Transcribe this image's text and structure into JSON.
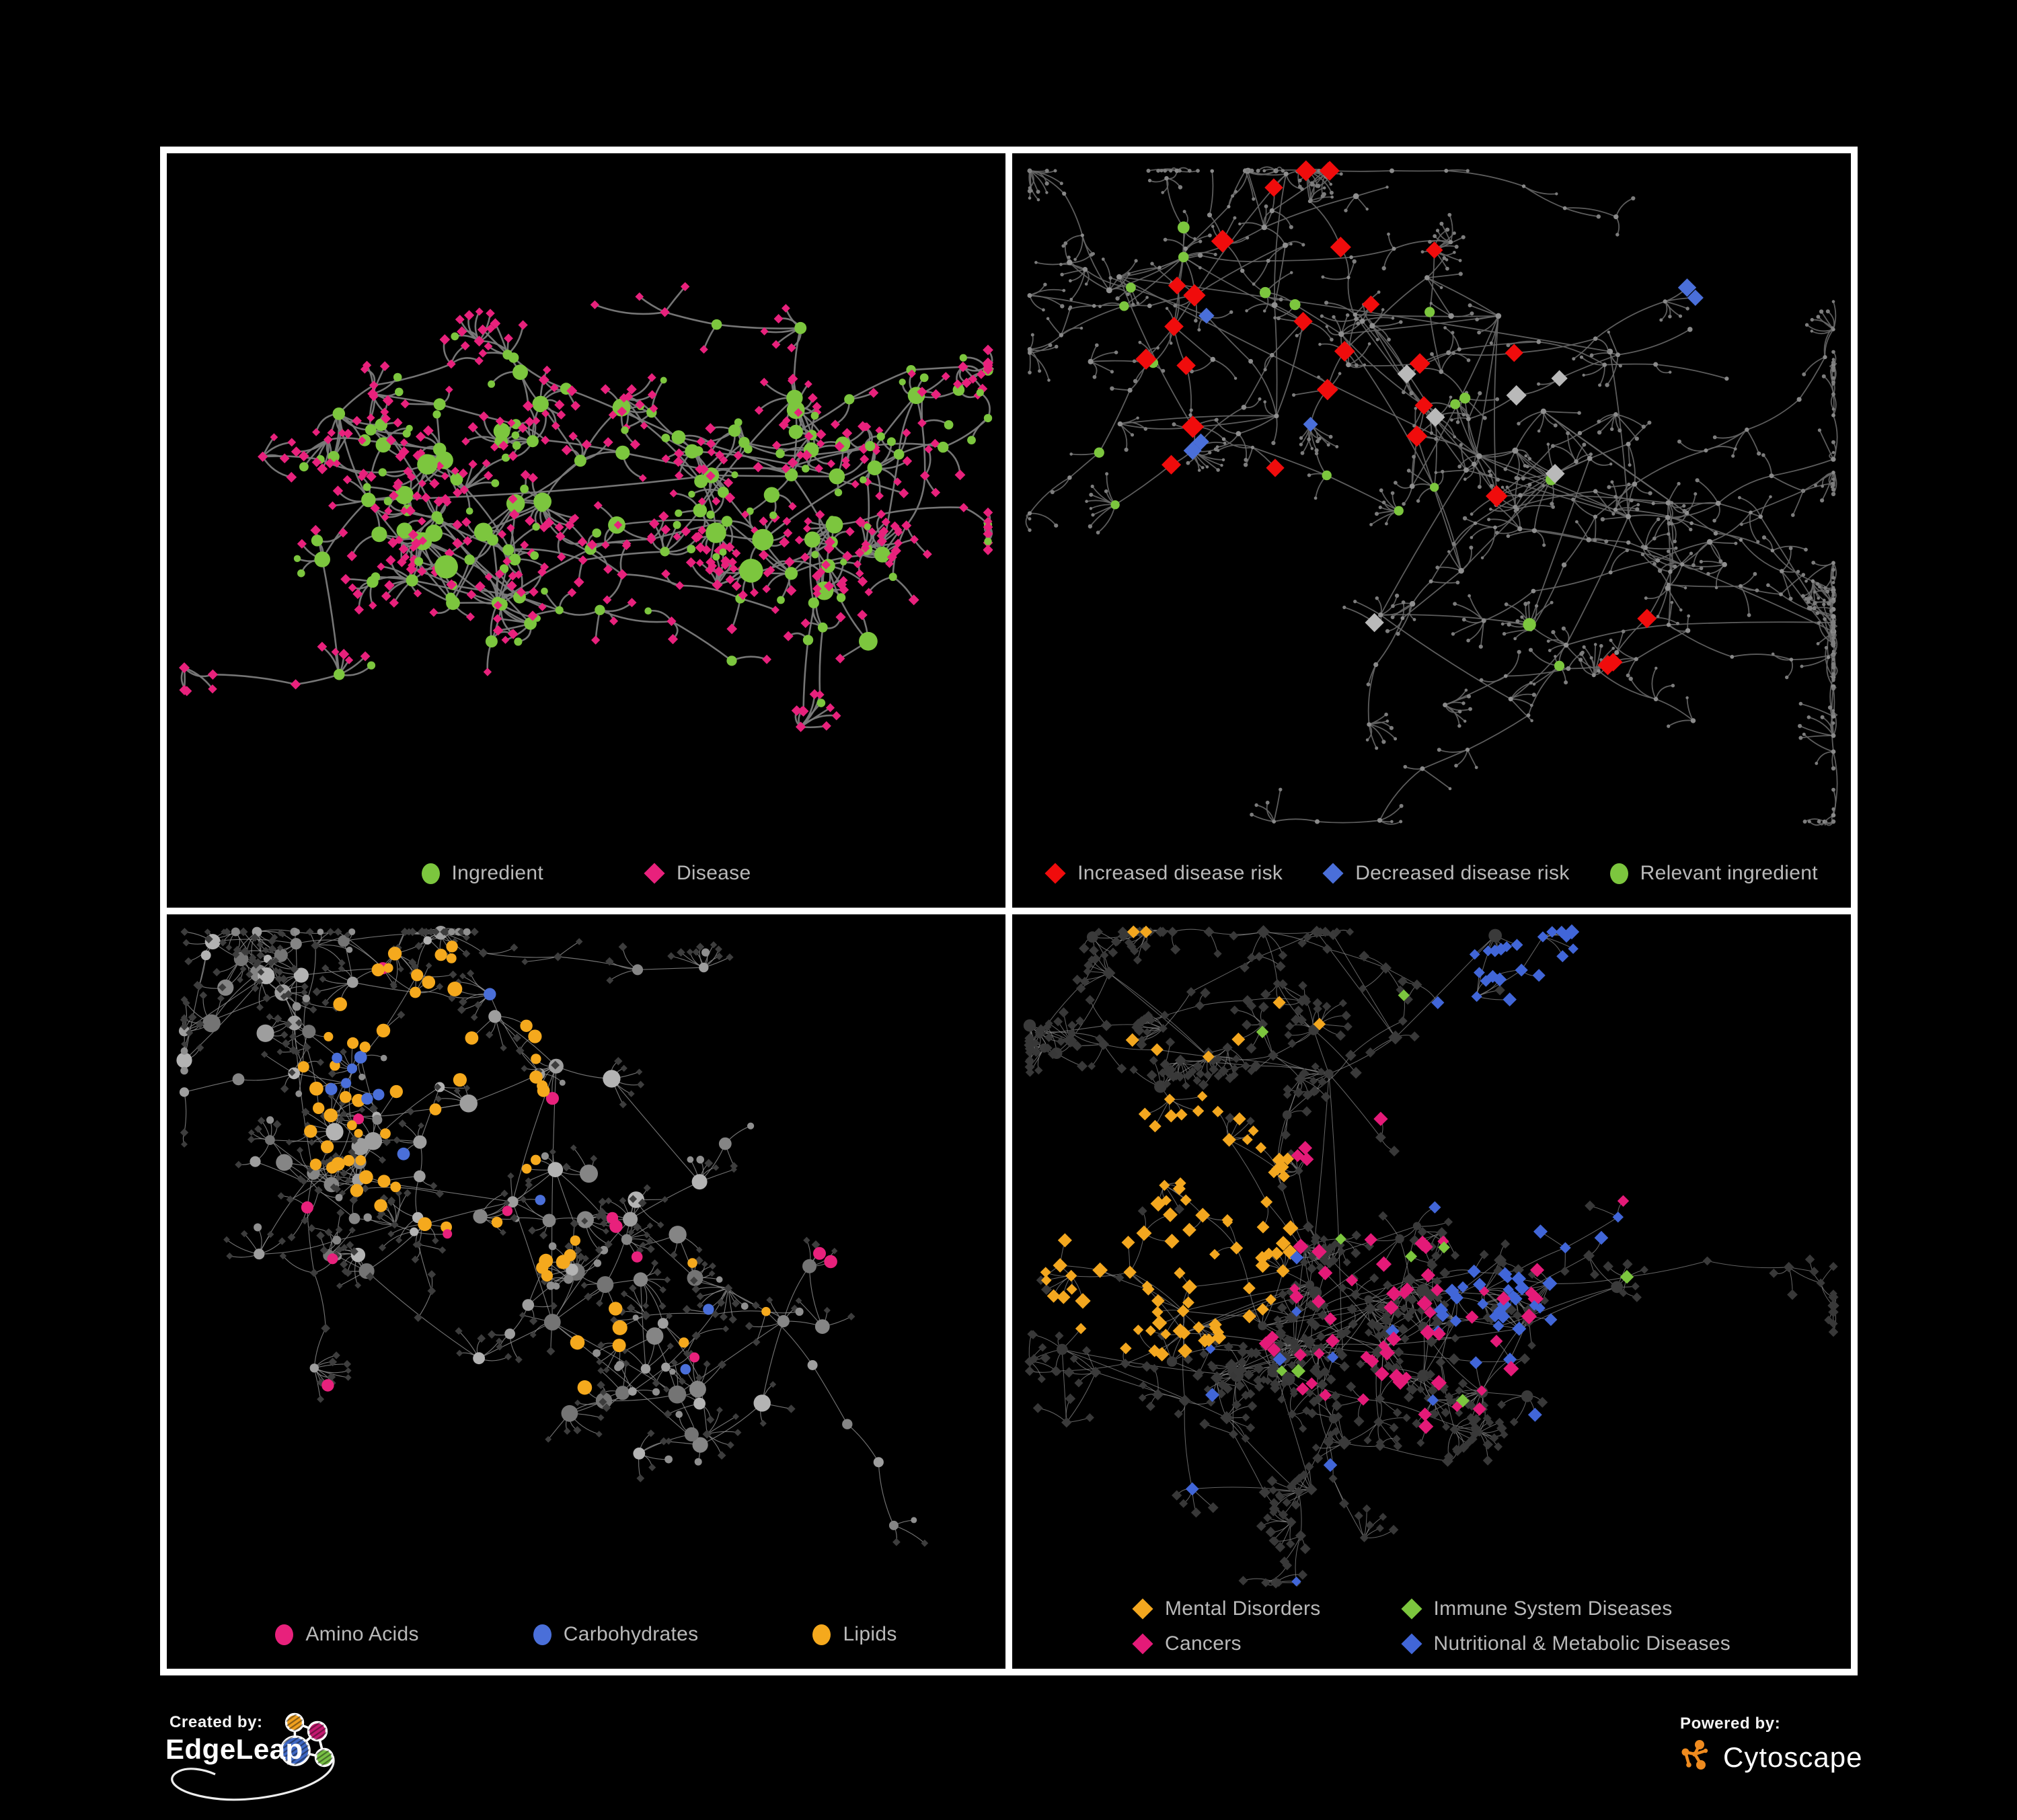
{
  "colors": {
    "background": "#000000",
    "frame": "#ffffff",
    "legend_text": "#b9b9b9"
  },
  "panels": [
    {
      "name": "ingredient-disease",
      "legend": {
        "layout": "row",
        "items": [
          {
            "label": "Ingredient",
            "shape": "circle",
            "color": "#7CC63E"
          },
          {
            "label": "Disease",
            "shape": "diamond",
            "color": "#E8217C"
          }
        ]
      },
      "network": {
        "seed": 42,
        "clusters": 6,
        "hubs": 80,
        "spread": 250,
        "loop": 0.22,
        "web": 50,
        "arms": 26,
        "armSteps": [
          2,
          4
        ],
        "leafHub": [
          1,
          6
        ],
        "leafBranch": [
          0,
          3
        ],
        "fan": [
          3,
          7
        ],
        "leafRadius": [
          26,
          58
        ],
        "edge": {
          "color": "#7B7B7B",
          "width": 2.6,
          "opacity": 0.95,
          "curve": 16
        },
        "base": {
          "hub": {
            "shape": "circle",
            "color": "#7CC63E",
            "r": [
              7.5,
              14
            ]
          },
          "branch": [
            {
              "p": 0.55,
              "shape": "diamond",
              "color": "#E8217C",
              "r": [
                5.5,
                7
              ]
            },
            {
              "p": 0.45,
              "shape": "circle",
              "color": "#7CC63E",
              "r": [
                6,
                9
              ]
            }
          ],
          "leaf": [
            {
              "p": 0.86,
              "shape": "diamond",
              "color": "#E8217C",
              "r": [
                5,
                6.8
              ]
            },
            {
              "p": 0.14,
              "shape": "circle",
              "color": "#7CC63E",
              "r": [
                5,
                7
              ]
            }
          ]
        },
        "overlays": [
          {
            "count": 5,
            "pick": "hub",
            "region": [
              0.4,
              0.4,
              0.35
            ],
            "shape": "circle",
            "color": "#7CC63E",
            "r": [
              15,
              19
            ]
          },
          {
            "count": 30,
            "pick": "any",
            "region": [
              0.28,
              0.2,
              0.075
            ],
            "shape": "circle",
            "color": "#7CC63E",
            "r": [
              6.5,
              9.5
            ]
          }
        ]
      }
    },
    {
      "name": "disease-risk",
      "legend": {
        "layout": "row",
        "items": [
          {
            "label": "Increased disease risk",
            "shape": "diamond",
            "color": "#F00C0C"
          },
          {
            "label": "Decreased disease risk",
            "shape": "diamond",
            "color": "#4A6FD9"
          },
          {
            "label": "Relevant ingredient",
            "shape": "circle",
            "color": "#7CC63E"
          }
        ]
      },
      "network": {
        "seed": 7,
        "clusters": 7,
        "hubs": 75,
        "spread": 330,
        "loop": 0.15,
        "web": 90,
        "arms": 42,
        "armSteps": [
          3,
          6
        ],
        "leafHub": [
          1,
          4
        ],
        "leafBranch": [
          0,
          3
        ],
        "fan": [
          3,
          8
        ],
        "leafRadius": [
          24,
          54
        ],
        "edge": {
          "color": "#666666",
          "width": 1.8,
          "opacity": 0.9,
          "curve": 12
        },
        "base": {
          "hub": {
            "shape": "circle",
            "color": "#8F8F8F",
            "r": [
              3.2,
              4.6
            ]
          },
          "branch": {
            "shape": "circle",
            "color": "#8A8A8A",
            "r": [
              2.6,
              3.8
            ]
          },
          "leaf": {
            "shape": "circle",
            "color": "#7D7D7D",
            "r": [
              2.2,
              3.2
            ]
          }
        },
        "overlays": [
          {
            "count": 22,
            "pick": "hub,branch",
            "region": [
              0.33,
              0.36,
              0.28
            ],
            "shape": "diamond",
            "color": "#F00C0C",
            "r": [
              10.5,
              14.5
            ]
          },
          {
            "count": 3,
            "pick": "any",
            "region": [
              0.7,
              0.72,
              0.1
            ],
            "shape": "diamond",
            "color": "#F00C0C",
            "r": [
              11,
              13
            ]
          },
          {
            "count": 2,
            "pick": "any",
            "region": [
              0.55,
              0.5,
              0.3
            ],
            "shape": "diamond",
            "color": "#F00C0C",
            "r": [
              10.5,
              13
            ]
          },
          {
            "count": 2,
            "pick": "any",
            "region": [
              0.845,
              0.165,
              0.05
            ],
            "shape": "diamond",
            "color": "#4A6FD9",
            "r": [
              10,
              12
            ]
          },
          {
            "count": 4,
            "pick": "hub,branch",
            "region": [
              0.27,
              0.4,
              0.15
            ],
            "shape": "diamond",
            "color": "#4A6FD9",
            "r": [
              9,
              12
            ]
          },
          {
            "count": 6,
            "pick": "hub,branch",
            "region": [
              0.42,
              0.42,
              0.3
            ],
            "shape": "diamond",
            "color": "#B9B9B9",
            "r": [
              10,
              13
            ]
          },
          {
            "count": 15,
            "pick": "hub,branch",
            "region": [
              0.33,
              0.37,
              0.26
            ],
            "shape": "circle",
            "color": "#7CC63E",
            "r": [
              6.5,
              9
            ]
          },
          {
            "count": 3,
            "pick": "hub",
            "region": [
              0.63,
              0.62,
              0.12
            ],
            "shape": "circle",
            "color": "#7CC63E",
            "r": [
              7,
              10
            ]
          }
        ]
      }
    },
    {
      "name": "macronutrient-classes",
      "legend": {
        "layout": "row",
        "items": [
          {
            "label": "Amino Acids",
            "shape": "circle",
            "color": "#E8217C"
          },
          {
            "label": "Carbohydrates",
            "shape": "circle",
            "color": "#4A6FD9"
          },
          {
            "label": "Lipids",
            "shape": "circle",
            "color": "#F5A91D"
          }
        ]
      },
      "network": {
        "seed": 13,
        "clusters": 6,
        "hubs": 85,
        "spread": 255,
        "loop": 0.2,
        "web": 70,
        "arms": 24,
        "armSteps": [
          2,
          4
        ],
        "leafHub": [
          1,
          6
        ],
        "leafBranch": [
          0,
          3
        ],
        "fan": [
          3,
          8
        ],
        "leafRadius": [
          25,
          56
        ],
        "edge": {
          "color": "#8F8F8F",
          "width": 1.15,
          "opacity": 0.8,
          "curve": 10
        },
        "base": {
          "hub": {
            "shape": "circle",
            "colorSet": [
              "#9E9E9E",
              "#858585",
              "#B3B3B3",
              "#747474"
            ],
            "r": [
              7,
              13.5
            ]
          },
          "branch": [
            {
              "p": 0.55,
              "shape": "diamond",
              "color": "#3D3D3D",
              "r": [
                4.5,
                6
              ]
            },
            {
              "p": 0.45,
              "shape": "circle",
              "colorSet": [
                "#9E9E9E",
                "#858585",
                "#B3B3B3"
              ],
              "r": [
                6,
                9
              ]
            }
          ],
          "leaf": [
            {
              "p": 0.9,
              "shape": "diamond",
              "color": "#3D3D3D",
              "r": [
                4,
                5.5
              ]
            },
            {
              "p": 0.1,
              "shape": "circle",
              "color": "#8F8F8F",
              "r": [
                4.5,
                6.5
              ]
            }
          ]
        },
        "overlays": [
          {
            "count": 48,
            "pick": "any",
            "region": [
              0.33,
              0.25,
              0.17
            ],
            "shape": "circle",
            "color": "#F5A91D",
            "r": [
              7,
              11
            ]
          },
          {
            "count": 10,
            "pick": "any",
            "region": [
              0.46,
              0.6,
              0.09
            ],
            "shape": "circle",
            "color": "#F5A91D",
            "r": [
              8,
              12
            ]
          },
          {
            "count": 9,
            "pick": "any",
            "region": [
              0.55,
              0.45,
              0.4
            ],
            "shape": "circle",
            "color": "#F5A91D",
            "r": [
              6.5,
              9
            ]
          },
          {
            "count": 9,
            "pick": "any",
            "region": [
              0.31,
              0.23,
              0.12
            ],
            "shape": "circle",
            "color": "#4A6FD9",
            "r": [
              7,
              9.5
            ]
          },
          {
            "count": 3,
            "pick": "any",
            "region": [
              0.62,
              0.62,
              0.3
            ],
            "shape": "circle",
            "color": "#4A6FD9",
            "r": [
              7,
              9
            ]
          },
          {
            "count": 14,
            "pick": "any",
            "region": [
              0.5,
              0.55,
              0.46
            ],
            "shape": "circle",
            "color": "#E8217C",
            "r": [
              7,
              10
            ]
          }
        ]
      }
    },
    {
      "name": "disease-categories",
      "legend": {
        "layout": "grid",
        "items": [
          {
            "label": "Mental Disorders",
            "shape": "diamond",
            "color": "#F3A71F"
          },
          {
            "label": "Immune System Diseases",
            "shape": "diamond",
            "color": "#7CC63E"
          },
          {
            "label": "Cancers",
            "shape": "diamond",
            "color": "#E41A78"
          },
          {
            "label": "Nutritional & Metabolic Diseases",
            "shape": "diamond",
            "color": "#4166D8"
          }
        ]
      },
      "network": {
        "seed": 99,
        "clusters": 7,
        "hubs": 95,
        "spread": 300,
        "loop": 0.2,
        "web": 80,
        "arms": 30,
        "armSteps": [
          2,
          5
        ],
        "leafHub": [
          2,
          7
        ],
        "leafBranch": [
          0,
          3
        ],
        "fan": [
          3,
          8
        ],
        "leafRadius": [
          22,
          50
        ],
        "edge": {
          "color": "#8C8C8C",
          "width": 1.05,
          "opacity": 0.7,
          "curve": 9
        },
        "base": {
          "hub": [
            {
              "p": 0.5,
              "shape": "circle",
              "color": "#3A3A3A",
              "r": [
                6,
                10
              ]
            },
            {
              "p": 0.5,
              "shape": "diamond",
              "color": "#3A3A3A",
              "r": [
                6,
                9
              ]
            }
          ],
          "branch": {
            "shape": "diamond",
            "color": "#3A3A3A",
            "r": [
              5.5,
              7.5
            ]
          },
          "leaf": {
            "shape": "diamond",
            "color": "#383838",
            "r": [
              5,
              6.8
            ]
          }
        },
        "overlays": [
          {
            "count": 85,
            "pick": "any",
            "region": [
              0.18,
              0.45,
              0.16
            ],
            "shape": "diamond",
            "color": "#F3A71F",
            "r": [
              6.5,
              10
            ]
          },
          {
            "count": 9,
            "pick": "any",
            "region": [
              0.33,
              0.16,
              0.22
            ],
            "shape": "diamond",
            "color": "#F3A71F",
            "r": [
              6.5,
              9
            ]
          },
          {
            "count": 62,
            "pick": "any",
            "region": [
              0.47,
              0.52,
              0.19
            ],
            "shape": "diamond",
            "color": "#E41A78",
            "r": [
              6.5,
              10
            ]
          },
          {
            "count": 7,
            "pick": "any",
            "region": [
              0.78,
              0.24,
              0.16
            ],
            "shape": "diamond",
            "color": "#E41A78",
            "r": [
              6.5,
              9
            ]
          },
          {
            "count": 26,
            "pick": "any",
            "region": [
              0.6,
              0.58,
              0.09
            ],
            "shape": "diamond",
            "color": "#4166D8",
            "r": [
              6.5,
              9.5
            ]
          },
          {
            "count": 26,
            "pick": "any",
            "region": [
              0.72,
              0.2,
              0.25
            ],
            "shape": "diamond",
            "color": "#4166D8",
            "r": [
              6.5,
              9.5
            ]
          },
          {
            "count": 16,
            "pick": "any",
            "region": [
              0.5,
              0.58,
              0.42
            ],
            "shape": "diamond",
            "color": "#4166D8",
            "r": [
              6,
              9
            ]
          },
          {
            "count": 9,
            "pick": "any",
            "region": [
              0.5,
              0.38,
              0.3
            ],
            "shape": "diamond",
            "color": "#7CC63E",
            "r": [
              6.5,
              9.5
            ]
          }
        ]
      }
    }
  ],
  "footer": {
    "created_by_label": "Created by:",
    "created_by_brand": "EdgeLeap",
    "powered_by_label": "Powered by:",
    "powered_by_brand": "Cytoscape",
    "edgeleap_node_colors": [
      "#F0A01E",
      "#C41870",
      "#3E68C4",
      "#77C043"
    ],
    "cytoscape_brand_color": "#EF8B1F"
  }
}
